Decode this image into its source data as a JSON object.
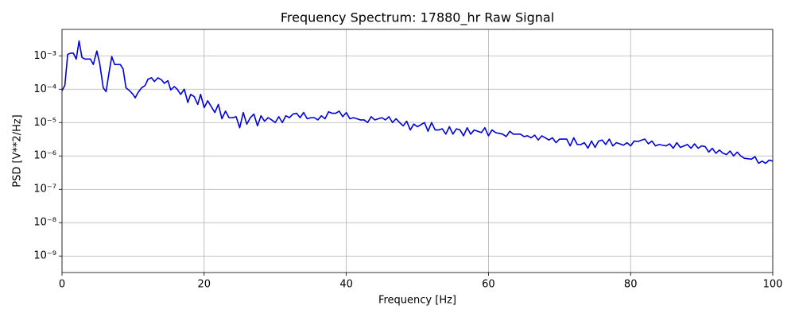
{
  "chart_data": {
    "type": "line",
    "title": "Frequency Spectrum: 17880_hr Raw Signal",
    "x_label": "Frequency [Hz]",
    "y_label": "PSD [V**2/Hz]",
    "yscale": "log",
    "grid": true,
    "xlim": [
      0,
      100
    ],
    "xticks": [
      0,
      20,
      40,
      60,
      80,
      100
    ],
    "ylim": [
      3.2e-10,
      0.0062
    ],
    "yticks": [
      {
        "value": 1e-09,
        "label": "10⁻⁹"
      },
      {
        "value": 1e-08,
        "label": "10⁻⁸"
      },
      {
        "value": 1e-07,
        "label": "10⁻⁷"
      },
      {
        "value": 1e-06,
        "label": "10⁻⁶"
      },
      {
        "value": 1e-05,
        "label": "10⁻⁵"
      },
      {
        "value": 0.0001,
        "label": "10⁻⁴"
      },
      {
        "value": 0.001,
        "label": "10⁻³"
      }
    ],
    "x": [
      0,
      0.4,
      0.8,
      1.2,
      1.6,
      2.0,
      2.4,
      2.8,
      3.2,
      3.6,
      4.0,
      4.4,
      4.9,
      5.3,
      5.8,
      6.2,
      6.6,
      7.0,
      7.4,
      7.8,
      8.2,
      8.6,
      9.0,
      9.5,
      10,
      10.3,
      10.7,
      11.2,
      11.7,
      12.1,
      12.6,
      13.0,
      13.5,
      14,
      14.4,
      14.9,
      15.3,
      15.8,
      16.2,
      16.7,
      17.2,
      17.7,
      18.1,
      18.6,
      19.1,
      19.5,
      20,
      20.5,
      21,
      21.5,
      22,
      22.5,
      23,
      23.5,
      24,
      24.5,
      25,
      25.5,
      26,
      26.5,
      27,
      27.5,
      28,
      28.5,
      29,
      29.5,
      30,
      30.5,
      31,
      31.5,
      32,
      32.5,
      33,
      33.5,
      34,
      34.5,
      35,
      35.5,
      36,
      36.5,
      37,
      37.5,
      38,
      38.5,
      39,
      39.5,
      40,
      40.5,
      41,
      41.5,
      42,
      42.5,
      43,
      43.5,
      44,
      45,
      45.5,
      46,
      46.5,
      47,
      47.5,
      48,
      48.5,
      49,
      49.5,
      50,
      51,
      51.5,
      52,
      52.5,
      53,
      53.5,
      54,
      54.5,
      55,
      55.5,
      56,
      56.5,
      57,
      57.5,
      58,
      59,
      59.5,
      60,
      60.5,
      61,
      62,
      62.5,
      63,
      63.5,
      64.5,
      65,
      65.5,
      66,
      66.5,
      67,
      67.5,
      68,
      68.5,
      69,
      69.5,
      70,
      71,
      71.5,
      72,
      72.5,
      73,
      73.5,
      74,
      74.5,
      75,
      75.5,
      76,
      76.5,
      77,
      77.5,
      78,
      79,
      79.5,
      80,
      80.5,
      81,
      82,
      82.5,
      83,
      83.5,
      84,
      85,
      85.5,
      86,
      86.5,
      87,
      88,
      88.5,
      89,
      89.5,
      90,
      90.5,
      91,
      91.5,
      92,
      92.5,
      93,
      93.5,
      94,
      94.5,
      95,
      95.5,
      96,
      97,
      97.5,
      98,
      98.5,
      99,
      99.5,
      100
    ],
    "series": [
      {
        "name": "PSD",
        "color": "#0000dd",
        "values": [
          9e-05,
          0.00013,
          0.0011,
          0.0012,
          0.0012,
          0.0008,
          0.0028,
          0.0009,
          0.0008,
          0.0008,
          0.0008,
          0.00055,
          0.0014,
          0.0006,
          0.00011,
          8.5e-05,
          0.0003,
          0.00095,
          0.00055,
          0.00055,
          0.00055,
          0.0004,
          0.00011,
          9e-05,
          7e-05,
          5.5e-05,
          8e-05,
          0.00011,
          0.00013,
          0.0002,
          0.00022,
          0.00017,
          0.00022,
          0.00019,
          0.00015,
          0.00018,
          9.5e-05,
          0.00012,
          0.0001,
          7e-05,
          0.0001,
          4e-05,
          7e-05,
          6e-05,
          3.5e-05,
          7e-05,
          2.8e-05,
          4.5e-05,
          3e-05,
          2e-05,
          3.5e-05,
          1.3e-05,
          2.2e-05,
          1.4e-05,
          1.4e-05,
          1.5e-05,
          7e-06,
          2e-05,
          9e-06,
          1.4e-05,
          1.8e-05,
          8e-06,
          1.6e-05,
          1.1e-05,
          1.4e-05,
          1.2e-05,
          1e-05,
          1.5e-05,
          1e-05,
          1.6e-05,
          1.4e-05,
          1.8e-05,
          1.9e-05,
          1.4e-05,
          2e-05,
          1.3e-05,
          1.4e-05,
          1.4e-05,
          1.2e-05,
          1.6e-05,
          1.3e-05,
          2.1e-05,
          1.9e-05,
          1.9e-05,
          2.2e-05,
          1.5e-05,
          2e-05,
          1.3e-05,
          1.4e-05,
          1.3e-05,
          1.2e-05,
          1.2e-05,
          1e-05,
          1.5e-05,
          1.2e-05,
          1.4e-05,
          1.2e-05,
          1.5e-05,
          1e-05,
          1.3e-05,
          1e-05,
          8e-06,
          1.1e-05,
          6e-06,
          9e-06,
          7.5e-06,
          1e-05,
          5.5e-06,
          1e-05,
          6e-06,
          6e-06,
          6.5e-06,
          4.5e-06,
          7.5e-06,
          4.5e-06,
          6.5e-06,
          6e-06,
          4e-06,
          7e-06,
          4.5e-06,
          6e-06,
          5e-06,
          7e-06,
          4e-06,
          6e-06,
          5e-06,
          4.5e-06,
          3.8e-06,
          5.5e-06,
          4.5e-06,
          4.5e-06,
          3.8e-06,
          4e-06,
          3.5e-06,
          4.2e-06,
          3e-06,
          4e-06,
          3.5e-06,
          3e-06,
          3.5e-06,
          2.5e-06,
          3.2e-06,
          3.2e-06,
          2e-06,
          3.5e-06,
          2.2e-06,
          2.2e-06,
          2.5e-06,
          1.7e-06,
          2.8e-06,
          1.8e-06,
          2.8e-06,
          3e-06,
          2.2e-06,
          3.2e-06,
          2e-06,
          2.5e-06,
          2.1e-06,
          2.5e-06,
          2e-06,
          2.8e-06,
          2.7e-06,
          3.2e-06,
          2.3e-06,
          2.8e-06,
          2e-06,
          2.2e-06,
          2e-06,
          2.3e-06,
          1.7e-06,
          2.5e-06,
          1.8e-06,
          2.2e-06,
          1.7e-06,
          2.3e-06,
          1.7e-06,
          2e-06,
          1.9e-06,
          1.3e-06,
          1.7e-06,
          1.2e-06,
          1.5e-06,
          1.2e-06,
          1.1e-06,
          1.4e-06,
          1e-06,
          1.3e-06,
          1e-06,
          8.5e-07,
          8e-07,
          9.5e-07,
          6e-07,
          7e-07,
          6e-07,
          7.5e-07,
          7e-07
        ]
      }
    ]
  }
}
